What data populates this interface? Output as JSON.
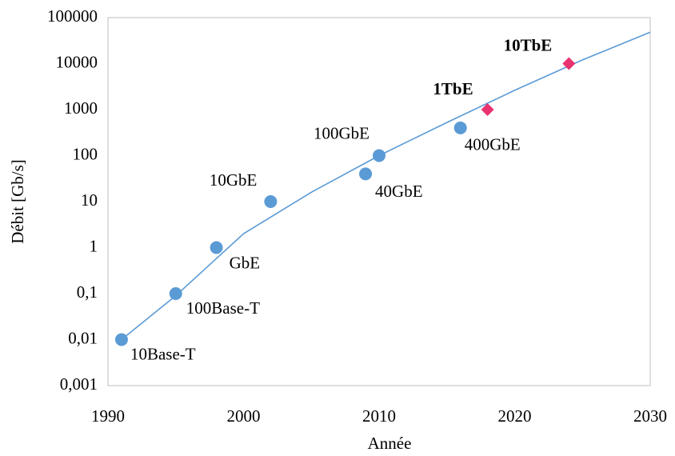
{
  "chart_data": {
    "type": "scatter",
    "x_label": "Année",
    "y_label": "Débit [Gb/s]",
    "xlim": [
      1990,
      2030
    ],
    "xticks": [
      1990,
      2000,
      2010,
      2020,
      2030
    ],
    "ylim": [
      0.001,
      100000
    ],
    "yticks": [
      {
        "value": 0.001,
        "label": "0,001"
      },
      {
        "value": 0.01,
        "label": "0,01"
      },
      {
        "value": 0.1,
        "label": "0,1"
      },
      1,
      10,
      100,
      1000,
      10000,
      100000
    ],
    "y_scale": "log",
    "grid": false,
    "series": [
      {
        "marker": "circle",
        "color": "#5b9bd5",
        "bold": false,
        "x": [
          1991,
          1995,
          1998,
          2002,
          2009,
          2010,
          2016
        ],
        "values": [
          0.01,
          0.1,
          1,
          10,
          40,
          100,
          400
        ],
        "labels": [
          "10Base-T",
          "100Base-T",
          "GbE",
          "10GbE",
          "40GbE",
          "100GbE",
          "400GbE"
        ]
      },
      {
        "marker": "diamond",
        "color": "#e8336f",
        "bold": true,
        "x": [
          2018,
          2024
        ],
        "values": [
          1000,
          10000
        ],
        "labels": [
          "1TbE",
          "10TbE"
        ]
      }
    ],
    "trend": {
      "color": "#5b9bd5",
      "x": [
        1991,
        1995,
        2000,
        2005,
        2010,
        2015,
        2020,
        2025,
        2030
      ],
      "values": [
        0.01,
        0.09,
        2,
        16,
        100,
        525,
        2630,
        12000,
        48000
      ]
    }
  }
}
